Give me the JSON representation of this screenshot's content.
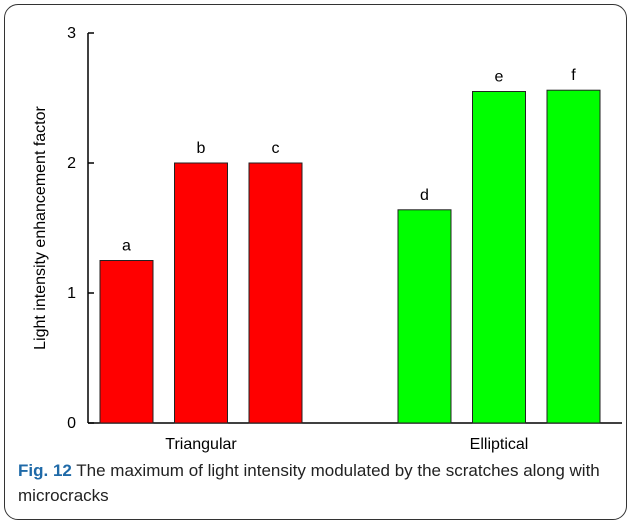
{
  "chart_data": {
    "type": "bar",
    "ylabel": "Light intensity enhancement factor",
    "ylim": [
      0,
      3
    ],
    "yticks": [
      0,
      1,
      2,
      3
    ],
    "groups": [
      {
        "label": "Triangular",
        "color": "#ff0000",
        "bars": [
          {
            "label": "a",
            "value": 1.25
          },
          {
            "label": "b",
            "value": 2.0
          },
          {
            "label": "c",
            "value": 2.0
          }
        ]
      },
      {
        "label": "Elliptical",
        "color": "#00ff00",
        "bars": [
          {
            "label": "d",
            "value": 1.64
          },
          {
            "label": "e",
            "value": 2.55
          },
          {
            "label": "f",
            "value": 2.56
          }
        ]
      }
    ]
  },
  "caption": {
    "label": "Fig. 12",
    "text": "The maximum of light intensity modulated by the scratches along with microcracks"
  }
}
